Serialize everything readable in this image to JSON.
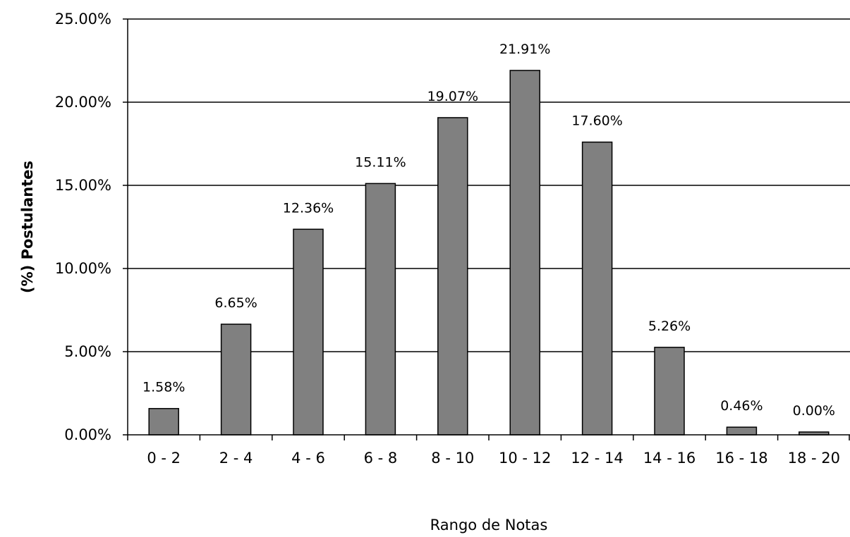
{
  "chart_data": {
    "type": "bar",
    "categories": [
      "0 - 2",
      "2 - 4",
      "4 - 6",
      "6 - 8",
      "8 - 10",
      "10 - 12",
      "12 - 14",
      "14 - 16",
      "16 - 18",
      "18 - 20"
    ],
    "values": [
      1.58,
      6.65,
      12.36,
      15.11,
      19.07,
      21.91,
      17.6,
      5.26,
      0.46,
      0.0
    ],
    "data_labels": [
      "1.58%",
      "6.65%",
      "12.36%",
      "15.11%",
      "19.07%",
      "21.91%",
      "17.60%",
      "5.26%",
      "0.46%",
      "0.00%"
    ],
    "title": "",
    "xlabel": "Rango de Notas",
    "ylabel": "(%)  Postulantes",
    "ylim": [
      0,
      25
    ],
    "yticks": [
      0,
      5,
      10,
      15,
      20,
      25
    ],
    "ytick_labels": [
      "0.00%",
      "5.00%",
      "10.00%",
      "15.00%",
      "20.00%",
      "25.00%"
    ],
    "grid": true,
    "legend": "none",
    "colors": {
      "bar_fill": "#808080",
      "bar_stroke": "#000000",
      "gridline": "#000000",
      "axis": "#000000"
    }
  }
}
